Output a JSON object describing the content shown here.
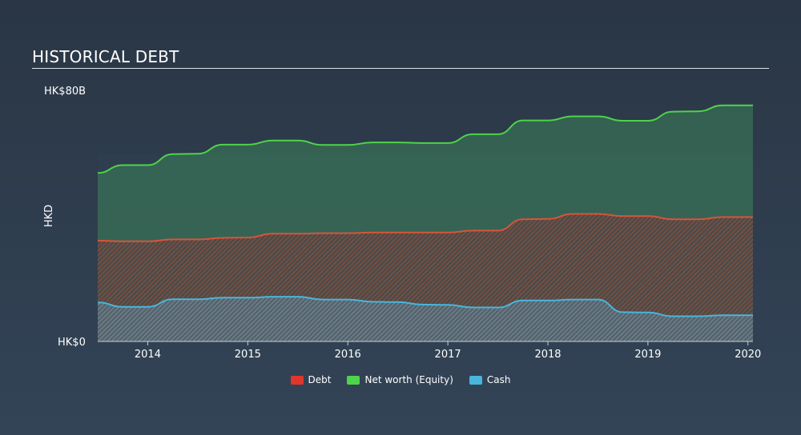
{
  "chart_data": {
    "type": "area",
    "title": "HISTORICAL DEBT",
    "ylabel": "HKD",
    "y_tick_labels": [
      "HK$0",
      "HK$80B"
    ],
    "ylim": [
      0,
      80
    ],
    "xlim": [
      2013.5,
      2020.05
    ],
    "x_ticks": [
      2014,
      2015,
      2016,
      2017,
      2018,
      2019,
      2020
    ],
    "x_tick_labels": [
      "2014",
      "2015",
      "2016",
      "2017",
      "2018",
      "2019",
      "2020"
    ],
    "legend_position": "bottom-center",
    "colors": {
      "debt": "#e0362c",
      "equity": "#4ed34a",
      "cash": "#48b6dc"
    },
    "series": [
      {
        "name": "Debt",
        "key": "debt",
        "x": [
          2013.5,
          2013.75,
          2014.0,
          2014.25,
          2014.5,
          2014.75,
          2015.0,
          2015.25,
          2015.5,
          2015.75,
          2016.0,
          2016.25,
          2016.5,
          2016.75,
          2017.0,
          2017.25,
          2017.5,
          2017.75,
          2018.0,
          2018.25,
          2018.5,
          2018.75,
          2019.0,
          2019.25,
          2019.5,
          2019.75,
          2020.05
        ],
        "values": [
          32.0,
          31.8,
          31.8,
          32.4,
          32.4,
          32.9,
          33.0,
          34.2,
          34.2,
          34.4,
          34.4,
          34.6,
          34.6,
          34.6,
          34.6,
          35.2,
          35.2,
          38.8,
          38.9,
          40.5,
          40.5,
          39.8,
          39.8,
          38.8,
          38.8,
          39.5,
          39.5
        ]
      },
      {
        "name": "Net worth (Equity)",
        "key": "equity",
        "x": [
          2013.5,
          2013.75,
          2014.0,
          2014.25,
          2014.5,
          2014.75,
          2015.0,
          2015.25,
          2015.5,
          2015.75,
          2016.0,
          2016.25,
          2016.5,
          2016.75,
          2017.0,
          2017.25,
          2017.5,
          2017.75,
          2018.0,
          2018.25,
          2018.5,
          2018.75,
          2019.0,
          2019.25,
          2019.5,
          2019.75,
          2020.05
        ],
        "values": [
          53.5,
          56.0,
          56.0,
          59.5,
          59.6,
          62.5,
          62.5,
          63.8,
          63.8,
          62.4,
          62.4,
          63.2,
          63.2,
          63.0,
          63.0,
          65.8,
          65.8,
          70.2,
          70.2,
          71.5,
          71.5,
          70.1,
          70.1,
          73.0,
          73.1,
          75.0,
          75.0
        ]
      },
      {
        "name": "Cash",
        "key": "cash",
        "x": [
          2013.5,
          2013.75,
          2014.0,
          2014.25,
          2014.5,
          2014.75,
          2015.0,
          2015.25,
          2015.5,
          2015.75,
          2016.0,
          2016.25,
          2016.5,
          2016.75,
          2017.0,
          2017.25,
          2017.5,
          2017.75,
          2018.0,
          2018.25,
          2018.5,
          2018.75,
          2019.0,
          2019.25,
          2019.5,
          2019.75,
          2020.05
        ],
        "values": [
          12.4,
          11.0,
          11.0,
          13.4,
          13.4,
          13.9,
          13.9,
          14.2,
          14.2,
          13.3,
          13.3,
          12.6,
          12.5,
          11.7,
          11.6,
          10.8,
          10.8,
          13.0,
          13.0,
          13.3,
          13.3,
          9.3,
          9.2,
          8.0,
          8.0,
          8.3,
          8.3
        ]
      }
    ]
  }
}
